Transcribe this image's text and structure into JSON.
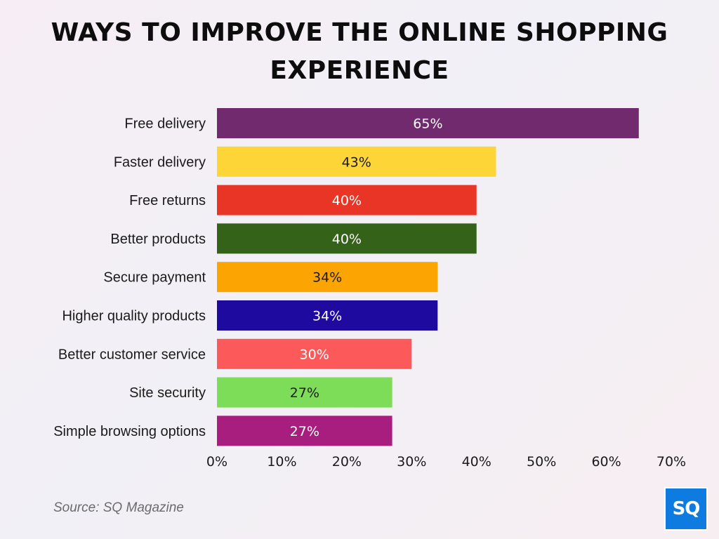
{
  "chart_data": {
    "type": "bar",
    "orientation": "horizontal",
    "title_lines": [
      "WAYS TO IMPROVE THE ONLINE SHOPPING",
      "EXPERIENCE"
    ],
    "categories": [
      "Free delivery",
      "Faster delivery",
      "Free returns",
      "Better products",
      "Secure payment",
      "Higher quality products",
      "Better customer service",
      "Site security",
      "Simple browsing options"
    ],
    "values": [
      65,
      43,
      40,
      40,
      34,
      34,
      30,
      27,
      27
    ],
    "data_labels": [
      "65%",
      "43%",
      "40%",
      "40%",
      "34%",
      "34%",
      "30%",
      "27%",
      "27%"
    ],
    "bar_colors": [
      "#722a6e",
      "#fdd536",
      "#e83526",
      "#336218",
      "#fca401",
      "#1e0a9e",
      "#fc5a5a",
      "#7ddc58",
      "#a81e7e"
    ],
    "label_colors": [
      "#ffffff",
      "#1a1a1a",
      "#ffffff",
      "#ffffff",
      "#1a1a1a",
      "#ffffff",
      "#ffffff",
      "#1a1a1a",
      "#ffffff"
    ],
    "xlim": [
      0,
      70
    ],
    "xticks": [
      0,
      10,
      20,
      30,
      40,
      50,
      60,
      70
    ],
    "xtick_labels": [
      "0%",
      "10%",
      "20%",
      "30%",
      "40%",
      "50%",
      "60%",
      "70%"
    ],
    "xlabel": "",
    "ylabel": "",
    "grid": false,
    "legend": "none"
  },
  "source": "Source: SQ Magazine",
  "logo_text": "SQ",
  "colors": {
    "logo_bg": "#0d7be0"
  }
}
